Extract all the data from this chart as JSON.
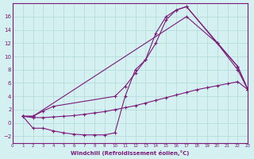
{
  "xlabel": "Windchill (Refroidissement éolien,°C)",
  "bg_color": "#d4f0f0",
  "line_color": "#7b1a7b",
  "grid_color": "#b0d8d8",
  "xlim": [
    0,
    23
  ],
  "ylim": [
    -3,
    18
  ],
  "xticks": [
    0,
    1,
    2,
    3,
    4,
    5,
    6,
    7,
    8,
    9,
    10,
    11,
    12,
    13,
    14,
    15,
    16,
    17,
    18,
    19,
    20,
    21,
    22,
    23
  ],
  "yticks": [
    -2,
    0,
    2,
    4,
    6,
    8,
    10,
    12,
    14,
    16
  ],
  "line1_x": [
    1,
    2,
    3,
    4,
    5,
    6,
    7,
    8,
    9,
    10,
    11,
    12,
    13,
    14,
    15,
    16,
    17,
    18,
    19,
    20,
    21,
    22,
    23
  ],
  "line1_y": [
    1.0,
    0.8,
    0.8,
    0.9,
    1.0,
    1.1,
    1.3,
    1.5,
    1.7,
    2.0,
    2.3,
    2.6,
    3.0,
    3.4,
    3.8,
    4.2,
    4.6,
    5.0,
    5.3,
    5.6,
    5.9,
    6.2,
    5.0
  ],
  "line2_x": [
    1,
    2,
    3,
    4,
    5,
    6,
    7,
    8,
    9,
    10,
    11,
    12,
    13,
    14,
    15,
    16,
    17,
    22,
    23
  ],
  "line2_y": [
    1.0,
    -0.8,
    -0.8,
    -1.2,
    -1.5,
    -1.7,
    -1.8,
    -1.8,
    -1.8,
    -1.5,
    4.0,
    8.0,
    9.5,
    13.5,
    16.0,
    17.0,
    17.5,
    8.5,
    5.0
  ],
  "line3_x": [
    1,
    2,
    3,
    4,
    10,
    11,
    12,
    13,
    14,
    15,
    16,
    17,
    20,
    22,
    23
  ],
  "line3_y": [
    1.0,
    1.0,
    1.8,
    2.5,
    4.0,
    5.5,
    7.5,
    9.5,
    12.0,
    15.5,
    17.0,
    17.5,
    12.0,
    8.0,
    5.0
  ],
  "line4_x": [
    1,
    2,
    17,
    20,
    22,
    23
  ],
  "line4_y": [
    1.0,
    1.0,
    16.0,
    12.0,
    8.5,
    5.0
  ]
}
